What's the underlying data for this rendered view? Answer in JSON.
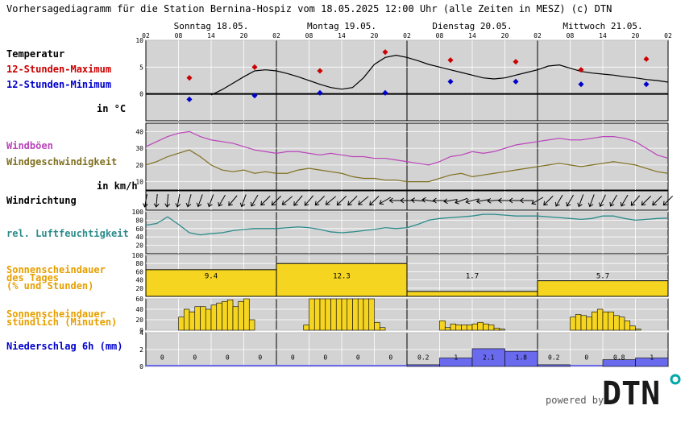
{
  "title": "Vorhersagediagramm für die Station Bernina-Hospiz vom 18.05.2025 12:00 Uhr (alle Zeiten in MESZ)   (c) DTN",
  "branding": {
    "powered_by": "powered by",
    "logo_text": "DTN"
  },
  "colors": {
    "panel_bg": "#d3d3d3",
    "max_color": "#cc0000",
    "min_color": "#0000cc",
    "gust_color": "#bb44bb",
    "wind_color": "#807020",
    "humidity_color": "#2b8b8b",
    "sun_fill": "#f5d520",
    "sun_label": "#e6a000",
    "precip_fill": "#6a6aee",
    "precip_label": "#0000cc",
    "logo_dot": "#00a8a8"
  },
  "days": [
    "Sonntag 18.05.",
    "Montag 19.05.",
    "Dienstag 20.05.",
    "Mittwoch 21.05."
  ],
  "hour_ticks": [
    "02",
    "08",
    "14",
    "20",
    "02",
    "08",
    "14",
    "20",
    "02",
    "08",
    "14",
    "20",
    "02",
    "08",
    "14",
    "20",
    "02"
  ],
  "labels": {
    "temperature": "Temperatur",
    "max": "12-Stunden-Maximum",
    "min": "12-Stunden-Minimum",
    "temp_unit": "in °C",
    "gusts": "Windböen",
    "wind_speed": "Windgeschwindigkeit",
    "wind_unit": "in km/h",
    "wind_direction": "Windrichtung",
    "humidity": "rel. Luftfeuchtigkeit",
    "sunshine_daily": [
      "Sonnenscheindauer",
      "des Tages",
      "(% und Stunden)"
    ],
    "sunshine_hourly": [
      "Sonnenscheindauer",
      "stündlich (Minuten)"
    ],
    "precip": "Niederschlag 6h (mm)"
  },
  "chart_data": [
    {
      "type": "line",
      "name": "Temperatur",
      "x_unit": "hours since 18.05. 02:00",
      "ylim": [
        -5,
        10
      ],
      "yticks": [
        0,
        5,
        10
      ],
      "x": [
        12,
        14,
        16,
        18,
        20,
        22,
        24,
        26,
        28,
        30,
        32,
        34,
        36,
        38,
        40,
        42,
        44,
        46,
        48,
        50,
        52,
        54,
        56,
        58,
        60,
        62,
        64,
        66,
        68,
        70,
        72,
        74,
        76,
        78,
        80,
        82,
        84,
        86,
        88,
        90,
        92,
        94,
        96
      ],
      "y": [
        -0.2,
        0.8,
        2,
        3.2,
        4.3,
        4.5,
        4.3,
        3.8,
        3.2,
        2.5,
        1.8,
        1.2,
        0.9,
        1.2,
        3,
        5.5,
        6.8,
        7.2,
        6.8,
        6.2,
        5.5,
        5,
        4.5,
        4,
        3.5,
        3,
        2.8,
        3,
        3.5,
        4,
        4.5,
        5.2,
        5.4,
        4.8,
        4.2,
        3.9,
        3.7,
        3.5,
        3.2,
        3,
        2.7,
        2.5,
        2.2
      ],
      "max_points": [
        {
          "x": 8,
          "y": 3
        },
        {
          "x": 20,
          "y": 5
        },
        {
          "x": 32,
          "y": 4.3
        },
        {
          "x": 44,
          "y": 7.8
        },
        {
          "x": 56,
          "y": 6.3
        },
        {
          "x": 68,
          "y": 6
        },
        {
          "x": 80,
          "y": 4.5
        },
        {
          "x": 92,
          "y": 6.5
        }
      ],
      "min_points": [
        {
          "x": 8,
          "y": -1
        },
        {
          "x": 20,
          "y": -0.3
        },
        {
          "x": 32,
          "y": 0.2
        },
        {
          "x": 44,
          "y": 0.2
        },
        {
          "x": 56,
          "y": 2.3
        },
        {
          "x": 68,
          "y": 2.3
        },
        {
          "x": 80,
          "y": 1.8
        },
        {
          "x": 92,
          "y": 1.8
        }
      ]
    },
    {
      "type": "line",
      "name": "Wind",
      "ylim": [
        5,
        45
      ],
      "yticks": [
        10,
        20,
        30,
        40
      ],
      "x": [
        0,
        2,
        4,
        6,
        8,
        10,
        12,
        14,
        16,
        18,
        20,
        22,
        24,
        26,
        28,
        30,
        32,
        34,
        36,
        38,
        40,
        42,
        44,
        46,
        48,
        50,
        52,
        54,
        56,
        58,
        60,
        62,
        64,
        66,
        68,
        70,
        72,
        74,
        76,
        78,
        80,
        82,
        84,
        86,
        88,
        90,
        92,
        94,
        96
      ],
      "series": [
        {
          "name": "Windböen",
          "values": [
            31,
            34,
            37,
            39,
            40,
            37,
            35,
            34,
            33,
            31,
            29,
            28,
            27,
            28,
            28,
            27,
            26,
            27,
            26,
            25,
            25,
            24,
            24,
            23,
            22,
            21,
            20,
            22,
            25,
            26,
            28,
            27,
            28,
            30,
            32,
            33,
            34,
            35,
            36,
            35,
            35,
            36,
            37,
            37,
            36,
            34,
            30,
            26,
            24
          ]
        },
        {
          "name": "Windgeschwindigkeit",
          "values": [
            20,
            22,
            25,
            27,
            29,
            25,
            20,
            17,
            16,
            17,
            15,
            16,
            15,
            15,
            17,
            18,
            17,
            16,
            15,
            13,
            12,
            12,
            11,
            11,
            10,
            10,
            10,
            12,
            14,
            15,
            13,
            14,
            15,
            16,
            17,
            18,
            19,
            20,
            21,
            20,
            19,
            20,
            21,
            22,
            21,
            20,
            18,
            16,
            15
          ]
        }
      ]
    },
    {
      "type": "table",
      "name": "Windrichtung",
      "x": [
        0,
        2,
        4,
        6,
        8,
        10,
        12,
        14,
        16,
        18,
        20,
        22,
        24,
        26,
        28,
        30,
        32,
        34,
        36,
        38,
        40,
        42,
        44,
        46,
        48,
        50,
        52,
        54,
        56,
        58,
        60,
        62,
        64,
        66,
        68,
        70,
        72,
        74,
        76,
        78,
        80,
        82,
        84,
        86,
        88,
        90,
        92,
        94,
        96
      ],
      "direction_deg": [
        10,
        5,
        5,
        10,
        15,
        20,
        20,
        30,
        40,
        20,
        30,
        45,
        45,
        50,
        40,
        40,
        45,
        50,
        45,
        45,
        50,
        45,
        60,
        90,
        90,
        95,
        100,
        90,
        80,
        70,
        75,
        80,
        85,
        90,
        90,
        90,
        60,
        45,
        30,
        30,
        20,
        20,
        25,
        30,
        30,
        40,
        45,
        45,
        45
      ]
    },
    {
      "type": "line",
      "name": "rel. Luftfeuchtigkeit",
      "ylim": [
        0,
        100
      ],
      "yticks": [
        20,
        40,
        60,
        80,
        100
      ],
      "x": [
        0,
        2,
        4,
        6,
        8,
        10,
        12,
        14,
        16,
        18,
        20,
        22,
        24,
        26,
        28,
        30,
        32,
        34,
        36,
        38,
        40,
        42,
        44,
        46,
        48,
        50,
        52,
        54,
        56,
        58,
        60,
        62,
        64,
        66,
        68,
        70,
        72,
        74,
        76,
        78,
        80,
        82,
        84,
        86,
        88,
        90,
        92,
        94,
        96
      ],
      "values": [
        68,
        72,
        88,
        70,
        50,
        45,
        48,
        50,
        55,
        58,
        60,
        60,
        60,
        62,
        64,
        62,
        58,
        52,
        50,
        52,
        55,
        58,
        62,
        60,
        62,
        70,
        80,
        84,
        86,
        88,
        90,
        94,
        94,
        92,
        90,
        90,
        90,
        88,
        86,
        84,
        82,
        84,
        90,
        90,
        84,
        80,
        82,
        84,
        85
      ]
    },
    {
      "type": "bar",
      "name": "Sonnenscheindauer des Tages",
      "categories": [
        "18.05.",
        "19.05.",
        "20.05.",
        "21.05."
      ],
      "percent": [
        65,
        80,
        12,
        38
      ],
      "hours": [
        "9.4",
        "12.3",
        "1.7",
        "5.7"
      ],
      "ylim": [
        0,
        100
      ],
      "yticks": [
        20,
        40,
        60,
        80,
        100
      ]
    },
    {
      "type": "bar",
      "name": "Sonnenscheindauer stündlich",
      "x_unit": "hour since 18.05. 02:00 (bar start)",
      "ylim": [
        0,
        60
      ],
      "yticks": [
        0,
        20,
        40,
        60
      ],
      "x": [
        6,
        7,
        8,
        9,
        10,
        11,
        12,
        13,
        14,
        15,
        16,
        17,
        18,
        19,
        29,
        30,
        31,
        32,
        33,
        34,
        35,
        36,
        37,
        38,
        39,
        40,
        41,
        42,
        43,
        54,
        55,
        56,
        57,
        58,
        59,
        60,
        61,
        62,
        63,
        64,
        65,
        78,
        79,
        80,
        81,
        82,
        83,
        84,
        85,
        86,
        87,
        88,
        89,
        90
      ],
      "values": [
        25,
        40,
        35,
        45,
        45,
        40,
        48,
        52,
        55,
        58,
        45,
        55,
        60,
        20,
        10,
        60,
        60,
        60,
        60,
        60,
        60,
        60,
        60,
        60,
        60,
        60,
        60,
        15,
        5,
        18,
        5,
        12,
        10,
        10,
        10,
        12,
        15,
        12,
        10,
        4,
        2,
        25,
        30,
        28,
        25,
        35,
        40,
        35,
        35,
        28,
        25,
        18,
        8,
        2
      ]
    },
    {
      "type": "bar",
      "name": "Niederschlag 6h",
      "categories": [
        "02-08",
        "08-14",
        "14-20",
        "20-02",
        "02-08",
        "08-14",
        "14-20",
        "20-02",
        "02-08",
        "08-14",
        "14-20",
        "20-02",
        "02-08",
        "08-14",
        "14-20",
        "20-02"
      ],
      "values": [
        0,
        0,
        0,
        0,
        0,
        0,
        0,
        0,
        0.2,
        1,
        2.1,
        1.8,
        0.2,
        0,
        0.8,
        1
      ],
      "labels": [
        "0",
        "0",
        "0",
        "0",
        "0",
        "0",
        "0",
        "0",
        "0.2",
        "1",
        "2.1",
        "1.8",
        "0.2",
        "0",
        "0.8",
        "1"
      ],
      "ylim": [
        0,
        4
      ],
      "yticks": [
        0,
        2,
        4
      ]
    }
  ]
}
